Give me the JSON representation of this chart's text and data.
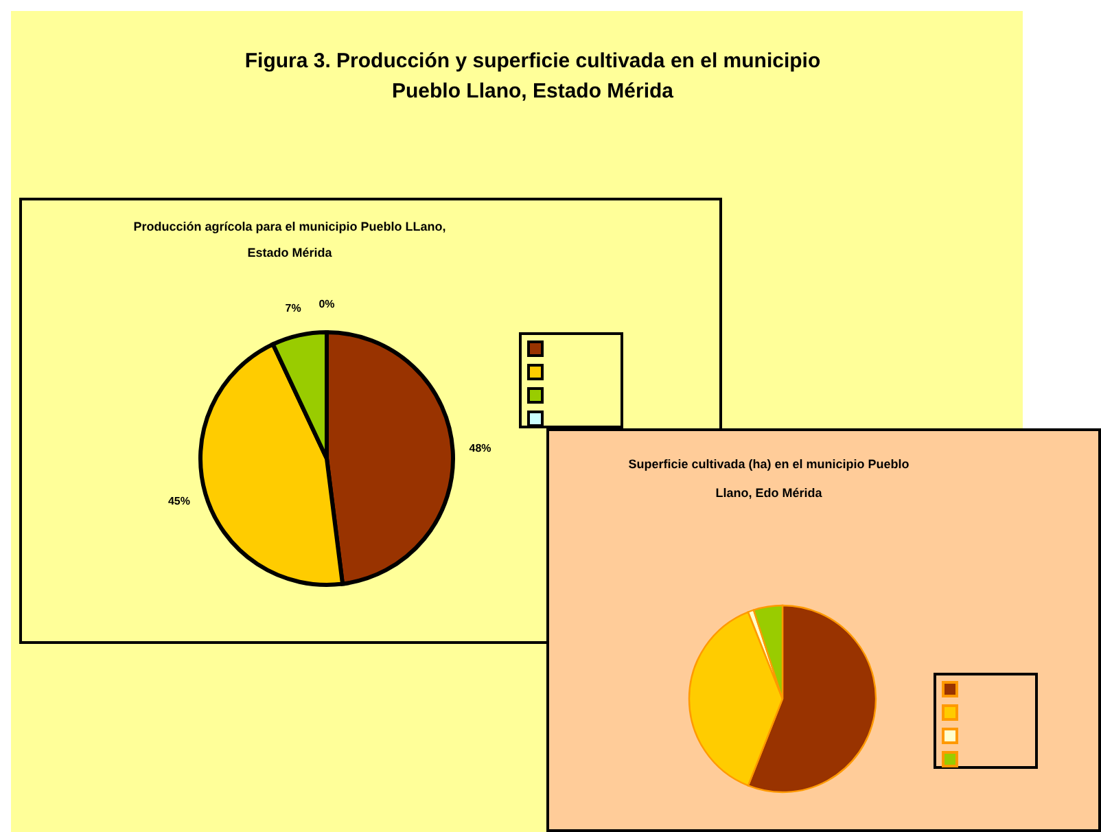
{
  "chart_data": [
    {
      "type": "pie",
      "title": "Figura 3. Producción y superficie cultivada en el municipio Pueblo Llano, Estado Mérida",
      "subtitle": "Producción agrícola para el municipio Pueblo LLano, Estado Mérida",
      "categories": [
        null,
        null,
        null,
        null
      ],
      "values": [
        48,
        45,
        7,
        0
      ],
      "colors": [
        "#993300",
        "#ffcc00",
        "#99cc00",
        "#ccffff"
      ],
      "value_labels": [
        "48%",
        "45%",
        "7%",
        "0%"
      ]
    },
    {
      "type": "pie",
      "title": "Superficie cultivada (ha) en el municipio Pueblo Llano, Edo Mérida",
      "categories": [
        null,
        null,
        null,
        null
      ],
      "values": [
        56,
        38,
        1,
        5
      ],
      "colors": [
        "#993300",
        "#ffcc00",
        "#ffffcc",
        "#99cc00"
      ]
    }
  ]
}
